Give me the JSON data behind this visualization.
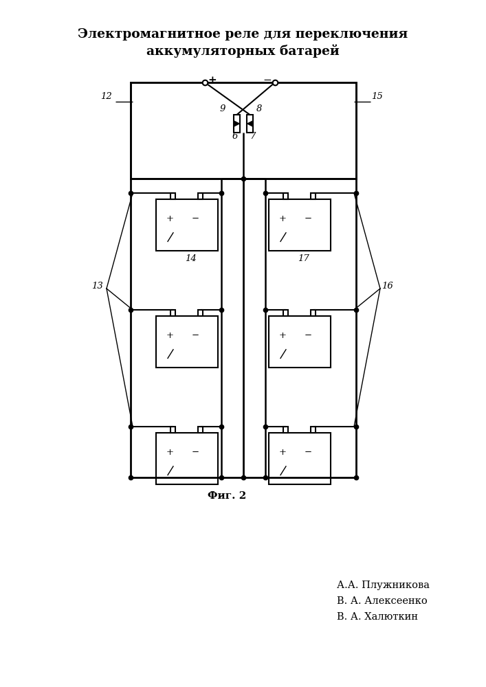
{
  "title_line1": "Электромагнитное реле для переключения",
  "title_line2": "аккумуляторных батарей",
  "fig_label": "Фиг. 2",
  "authors": [
    "А.А. Плужникова",
    "В. А. Алексеенко",
    "В. А. Халюткин"
  ],
  "bg_color": "#ffffff",
  "line_color": "#000000",
  "lw_main": 1.8,
  "lw_thin": 1.0
}
